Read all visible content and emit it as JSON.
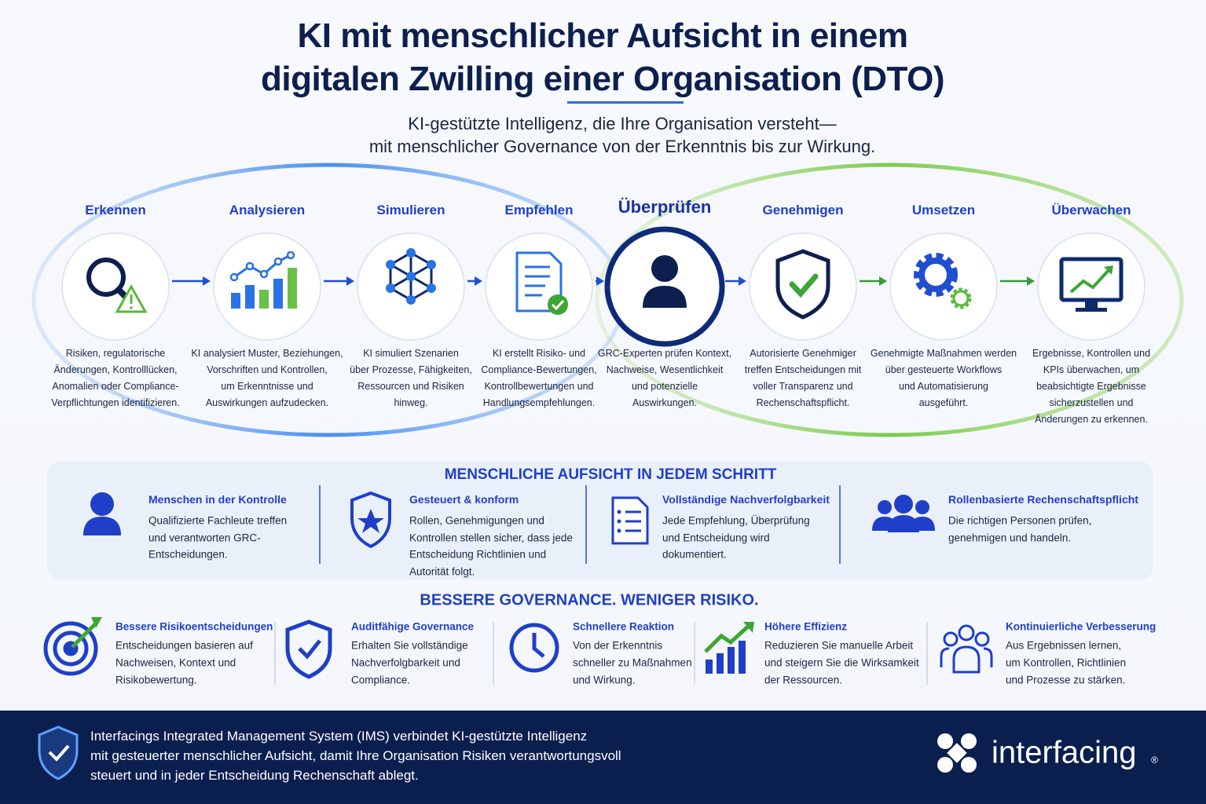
{
  "header": {
    "title": [
      "KI mit menschlicher Aufsicht in einem",
      "digitalen Zwilling einer Organisation (DTO)"
    ],
    "subtitle": [
      "KI-gestützte Intelligenz, die Ihre Organisation versteht—",
      "mit menschlicher Governance von der Erkenntnis bis zur Wirkung."
    ]
  },
  "steps": [
    {
      "label": "Erkennen",
      "description": [
        "Risiken, regulatorische",
        "Änderungen, Kontrolllücken,",
        "Anomalien oder Compliance-",
        "Verpflichtungen identifizieren."
      ]
    },
    {
      "label": "Analysieren",
      "description": [
        "KI analysiert Muster, Beziehungen,",
        "Vorschriften und Kontrollen,",
        "um Erkenntnisse und",
        "Auswirkungen aufzudecken."
      ]
    },
    {
      "label": "Simulieren",
      "description": [
        "KI simuliert Szenarien",
        "über Prozesse, Fähigkeiten,",
        "Ressourcen und Risiken",
        "hinweg."
      ]
    },
    {
      "label": "Empfehlen",
      "description": [
        "KI erstellt Risiko- und",
        "Compliance-Bewertungen,",
        "Kontrollbewertungen und",
        "Handlungsempfehlungen."
      ]
    },
    {
      "label": "Überprüfen",
      "description": [
        "GRC-Experten prüfen Kontext,",
        "Nachweise, Wesentlichkeit",
        "und potenzielle",
        "Auswirkungen."
      ]
    },
    {
      "label": "Genehmigen",
      "description": [
        "Autorisierte Genehmiger",
        "treffen Entscheidungen mit",
        "voller Transparenz und",
        "Rechenschaftspflicht."
      ]
    },
    {
      "label": "Umsetzen",
      "description": [
        "Genehmigte Maßnahmen werden",
        "über gesteuerte Workflows",
        "und Automatisierung",
        "ausgeführt."
      ]
    },
    {
      "label": "Überwachen",
      "description": [
        "Ergebnisse, Kontrollen und",
        "KPIs überwachen, um",
        "beabsichtigte Ergebnisse",
        "sicherzustellen und",
        "Änderungen zu erkennen."
      ]
    }
  ],
  "oversight": {
    "heading": "MENSCHLICHE AUFSICHT IN JEDEM SCHRITT",
    "items": [
      {
        "title": "Menschen in der Kontrolle",
        "text": [
          "Qualifizierte Fachleute treffen",
          "und verantworten GRC-",
          "Entscheidungen."
        ]
      },
      {
        "title": "Gesteuert & konform",
        "text": [
          "Rollen, Genehmigungen und",
          "Kontrollen stellen sicher, dass jede",
          "Entscheidung Richtlinien und",
          "Autorität folgt."
        ]
      },
      {
        "title": "Vollständige Nachverfolgbarkeit",
        "text": [
          "Jede Empfehlung, Überprüfung",
          "und Entscheidung wird",
          "dokumentiert."
        ]
      },
      {
        "title": "Rollenbasierte Rechenschaftspflicht",
        "text": [
          "Die richtigen Personen prüfen,",
          "genehmigen und handeln."
        ]
      }
    ]
  },
  "benefits": {
    "heading": "BESSERE GOVERNANCE. WENIGER RISIKO.",
    "items": [
      {
        "title": "Bessere Risikoentscheidungen",
        "text": [
          "Entscheidungen basieren auf",
          "Nachweisen, Kontext und",
          "Risikobewertung."
        ]
      },
      {
        "title": "Auditfähige Governance",
        "text": [
          "Erhalten Sie vollständige",
          "Nachverfolgbarkeit und",
          "Compliance."
        ]
      },
      {
        "title": "Schnellere Reaktion",
        "text": [
          "Von der Erkenntnis",
          "schneller zu Maßnahmen",
          "und Wirkung."
        ]
      },
      {
        "title": "Höhere Effizienz",
        "text": [
          "Reduzieren Sie manuelle Arbeit",
          "und steigern Sie die Wirksamkeit",
          "der Ressourcen."
        ]
      },
      {
        "title": "Kontinuierliche Verbesserung",
        "text": [
          "Aus Ergebnissen lernen,",
          "um Kontrollen, Richtlinien",
          "und Prozesse zu stärken."
        ]
      }
    ]
  },
  "footer": {
    "text": [
      "Interfacings Integrated Management System (IMS) verbindet KI-gestützte Intelligenz",
      "mit gesteuerter menschlicher Aufsicht, damit Ihre Organisation Risiken verantwortungsvoll",
      "steuert und in jeder Entscheidung Rechenschaft ablegt."
    ],
    "brand": "interfacing",
    "brand_mark": "®"
  }
}
